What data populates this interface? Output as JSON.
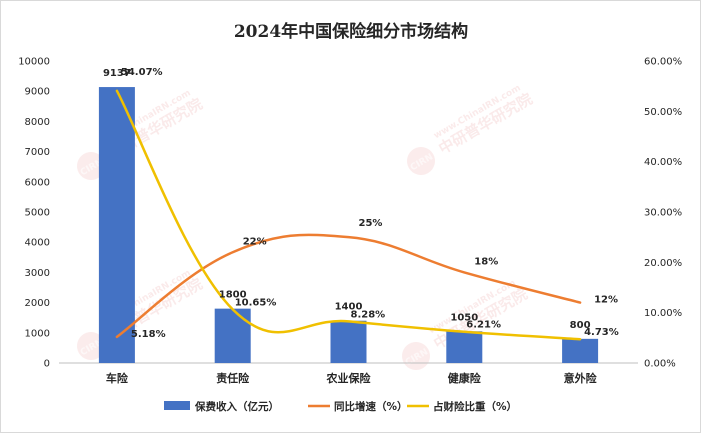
{
  "chart_data": {
    "type": "bar+line",
    "title": "2024年中国保险细分市场结构",
    "categories": [
      "车险",
      "责任险",
      "农业保险",
      "健康险",
      "意外险"
    ],
    "y_left": {
      "min": 0,
      "max": 10000,
      "step": 1000,
      "ticks": [
        "0",
        "1000",
        "2000",
        "3000",
        "4000",
        "5000",
        "6000",
        "7000",
        "8000",
        "9000",
        "10000"
      ]
    },
    "y_right": {
      "min": 0,
      "max": 60,
      "step": 10,
      "ticks": [
        "0.00%",
        "10.00%",
        "20.00%",
        "30.00%",
        "40.00%",
        "50.00%",
        "60.00%"
      ]
    },
    "series": [
      {
        "name": "保费收入（亿元）",
        "type": "bar",
        "axis": "left",
        "color": "#4472c4",
        "values": [
          9137,
          1800,
          1400,
          1050,
          800
        ],
        "labels": [
          "9137",
          "1800",
          "1400",
          "1050",
          "800"
        ]
      },
      {
        "name": "同比增速（%）",
        "type": "line",
        "axis": "right",
        "color": "#ed7d31",
        "values": [
          5.18,
          22,
          25,
          18,
          12
        ],
        "labels": [
          "5.18%",
          "22%",
          "25%",
          "18%",
          "12%"
        ]
      },
      {
        "name": "占财险比重（%）",
        "type": "line",
        "axis": "right",
        "color": "#f0c000",
        "values": [
          54.07,
          10.65,
          8.28,
          6.21,
          4.73
        ],
        "labels": [
          "54.07%",
          "10.65%",
          "8.28%",
          "6.21%",
          "4.73%"
        ]
      }
    ],
    "legend_position": "bottom",
    "grid": false
  },
  "watermark": {
    "text": "中研普华研究院",
    "url": "www.ChinaIRN.com",
    "badge": "CIRN"
  }
}
